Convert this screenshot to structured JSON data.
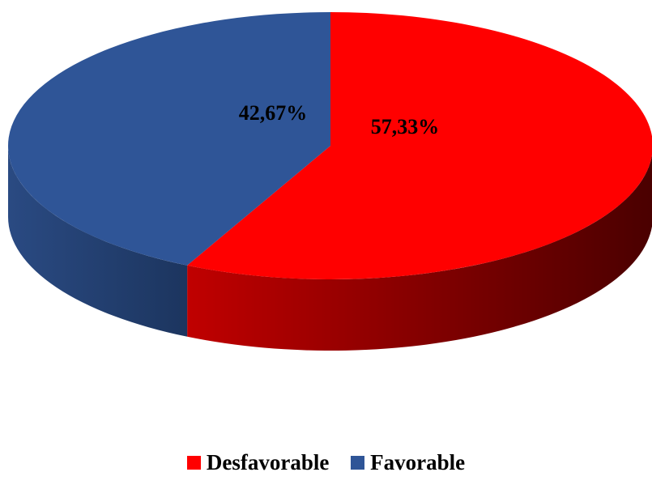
{
  "chart_data": {
    "type": "pie",
    "style": "3d",
    "slices": [
      {
        "name": "Desfavorable",
        "value": 57.33,
        "label": "57,33%",
        "color": "#ff0000",
        "dark": "#5c0000"
      },
      {
        "name": "Favorable",
        "value": 42.67,
        "label": "42,67%",
        "color": "#2f5597",
        "dark": "#1e3a6a"
      }
    ],
    "legend_position": "bottom"
  },
  "legend": {
    "items": [
      {
        "label": "Desfavorable",
        "color": "#ff0000"
      },
      {
        "label": "Favorable",
        "color": "#2f5597"
      }
    ]
  }
}
